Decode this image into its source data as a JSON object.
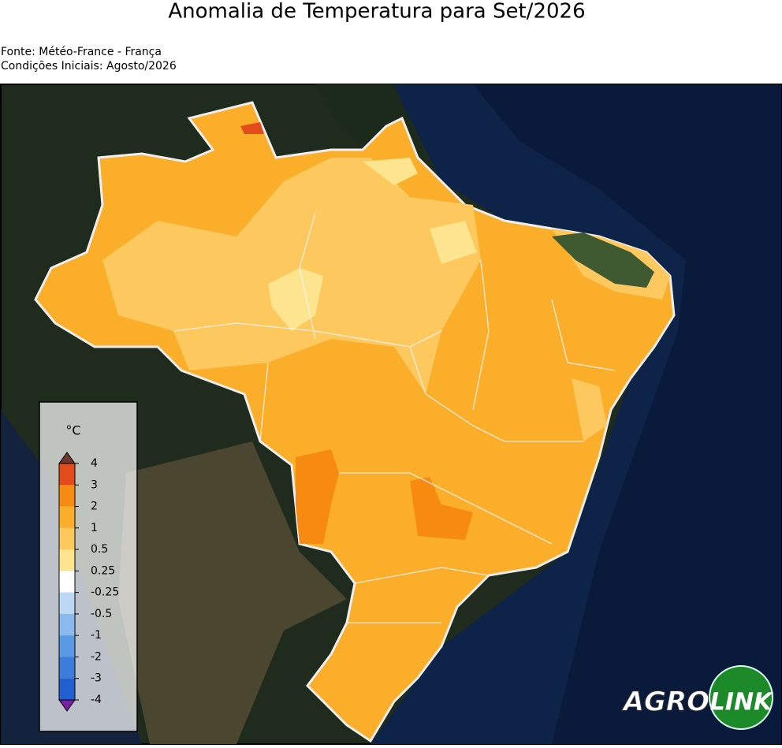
{
  "header": {
    "title": "Anomalia de Temperatura para Set/2026",
    "source": "Fonte: Météo-France - França",
    "initial_conditions": "Condições Iniciais: Agosto/2026"
  },
  "legend": {
    "unit": "°C",
    "ticks": [
      4,
      3,
      2,
      1,
      0.5,
      0.25,
      -0.25,
      -0.5,
      -1,
      -2,
      -3,
      -4
    ],
    "colors": [
      "#e34a1c",
      "#f78b12",
      "#fbae2a",
      "#fdc85e",
      "#fde58f",
      "#ffffff",
      "#bcd8f5",
      "#8ab9ee",
      "#5a99e3",
      "#3a7ddb",
      "#2060d0"
    ],
    "extend_colors": [
      "#6b3a2a",
      "#7a1fa8"
    ]
  },
  "logo": {
    "left": "AGRO",
    "right": "LINK"
  }
}
